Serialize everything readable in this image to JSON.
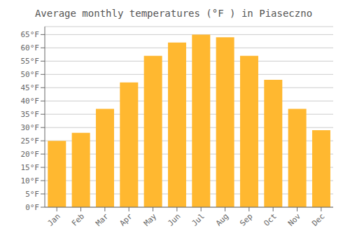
{
  "chart_data": {
    "type": "bar",
    "title": "Average monthly temperatures (°F ) in Piaseczno",
    "categories": [
      "Jan",
      "Feb",
      "Mar",
      "Apr",
      "May",
      "Jun",
      "Jul",
      "Aug",
      "Sep",
      "Oct",
      "Nov",
      "Dec"
    ],
    "values": [
      25,
      28,
      37,
      47,
      57,
      62,
      65,
      64,
      57,
      48,
      37,
      29
    ],
    "color": "#FFB830",
    "ylim": [
      0,
      68
    ],
    "yticks": [
      {
        "value": 0,
        "label": "0°F"
      },
      {
        "value": 5,
        "label": "5°F"
      },
      {
        "value": 10,
        "label": "10°F"
      },
      {
        "value": 15,
        "label": "15°F"
      },
      {
        "value": 20,
        "label": "20°F"
      },
      {
        "value": 25,
        "label": "25°F"
      },
      {
        "value": 30,
        "label": "30°F"
      },
      {
        "value": 35,
        "label": "35°F"
      },
      {
        "value": 40,
        "label": "40°F"
      },
      {
        "value": 45,
        "label": "45°F"
      },
      {
        "value": 50,
        "label": "50°F"
      },
      {
        "value": 55,
        "label": "55°F"
      },
      {
        "value": 60,
        "label": "60°F"
      },
      {
        "value": 65,
        "label": "65°F"
      }
    ],
    "grid": true
  }
}
